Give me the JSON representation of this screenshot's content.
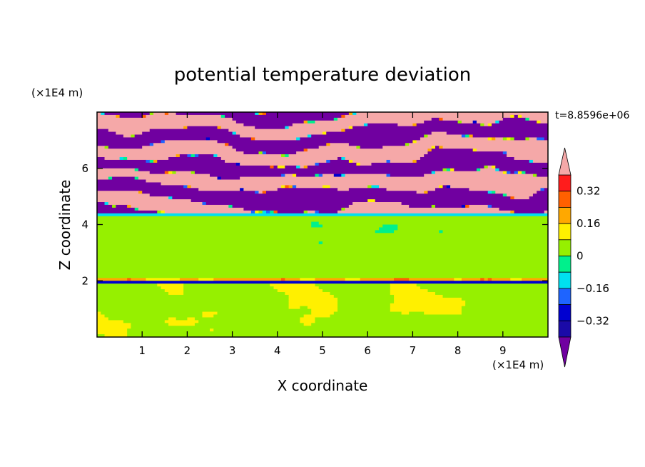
{
  "chart_data": {
    "type": "heatmap",
    "title": "potential temperature deviation",
    "xlabel": "X coordinate",
    "ylabel": "Z coordinate",
    "x_unit": "(×1E4 m)",
    "y_unit": "(×1E4 m)",
    "time_label": "t=8.8596e+06",
    "xlim": [
      0,
      10
    ],
    "ylim": [
      0,
      8
    ],
    "x_ticks": [
      "1",
      "2",
      "3",
      "4",
      "5",
      "6",
      "7",
      "8",
      "9"
    ],
    "y_ticks": [
      "2",
      "4",
      "6"
    ],
    "colorbar": {
      "tick_labels": [
        "0.32",
        "0.16",
        "0",
        "−0.16",
        "−0.32"
      ],
      "tick_values": [
        0.32,
        0.16,
        0,
        -0.16,
        -0.32
      ],
      "levels": [
        -0.4,
        -0.32,
        -0.24,
        -0.16,
        -0.08,
        0,
        0.08,
        0.16,
        0.24,
        0.32,
        0.4
      ],
      "colors": [
        "#7000a0",
        "#1a0aa8",
        "#0000d0",
        "#1e64ff",
        "#00e0f0",
        "#00f08c",
        "#96f000",
        "#fff000",
        "#ffa800",
        "#ff6000",
        "#ff1c1c",
        "#f5a8a8"
      ],
      "over_color": "#f5a8a8",
      "under_color": "#7000a0"
    },
    "regions": [
      {
        "z_range": [
          0,
          2
        ],
        "description_value": 0.04,
        "pattern": "mixed 0 to 0.08"
      },
      {
        "z_range": [
          2,
          4.3
        ],
        "description_value": 0.02,
        "pattern": "mostly 0 to 0.08"
      },
      {
        "z_range": [
          4.3,
          8
        ],
        "description_value": 0.0,
        "pattern": "alternating layers above 0.40 and below -0.40"
      }
    ]
  }
}
